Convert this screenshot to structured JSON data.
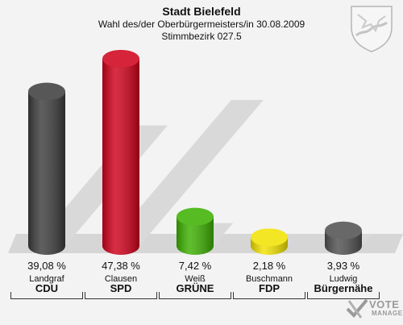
{
  "header": {
    "title": "Stadt Bielefeld",
    "subtitle": "Wahl des/der Oberbürgermeisters/in 30.08.2009",
    "district": "Stimmbezirk 027.5"
  },
  "logo": {
    "word": "VOTE",
    "word2": "MANAGER"
  },
  "icons": {
    "crest": "coat-of-arms-icon",
    "logo_mark": "vote-check-icon"
  },
  "chart_data": {
    "type": "bar",
    "categories": [
      "CDU",
      "SPD",
      "GRÜNE",
      "FDP",
      "Bürgernähe"
    ],
    "candidates": [
      "Landgraf",
      "Clausen",
      "Weiß",
      "Buschmann",
      "Ludwig"
    ],
    "values": [
      39.08,
      47.38,
      7.42,
      2.18,
      3.93
    ],
    "value_labels": [
      "39,08 %",
      "47,38 %",
      "7,42 %",
      "2,18 %",
      "3,93 %"
    ],
    "colors": [
      "#3c3c3c",
      "#d0001a",
      "#3cb000",
      "#f2e200",
      "#505050"
    ],
    "unit": "%",
    "ylim": [
      0,
      50
    ],
    "grid": false,
    "legend": "none"
  }
}
